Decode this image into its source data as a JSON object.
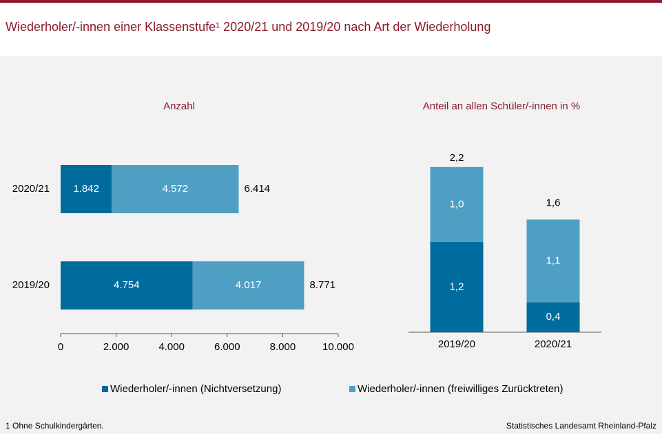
{
  "title": "Wiederholer/-innen einer Klassenstufe¹ 2020/21 und 2019/20 nach Art der Wiederholung",
  "footnote": "1 Ohne Schulkindergärten.",
  "source": "Statistisches Landesamt Rheinland-Pfalz",
  "chart_data": [
    {
      "type": "bar",
      "orientation": "horizontal",
      "subtitle": "Anzahl",
      "categories": [
        "2020/21",
        "2019/20"
      ],
      "series": [
        {
          "name": "Wiederholer/-innen (Nichtversetzung)",
          "color": "#006c9e",
          "values": [
            1842,
            4754
          ],
          "value_labels": [
            "1.842",
            "4.754"
          ]
        },
        {
          "name": "Wiederholer/-innen (freiwilliges Zurücktreten)",
          "color": "#4f9fc4",
          "values": [
            4572,
            4017
          ],
          "value_labels": [
            "4.572",
            "4.017"
          ]
        }
      ],
      "totals": [
        6414,
        8771
      ],
      "total_labels": [
        "6.414",
        "8.771"
      ],
      "xlim": [
        0,
        10000
      ],
      "xticks": [
        0,
        {
          "value": 2000,
          "label": "2.000"
        },
        {
          "value": 4000,
          "label": "4.000"
        },
        {
          "value": 6000,
          "label": "6.000"
        },
        {
          "value": 8000,
          "label": "8.000"
        },
        {
          "value": 10000,
          "label": "10.000"
        }
      ]
    },
    {
      "type": "bar",
      "orientation": "vertical",
      "subtitle": "Anteil an allen Schüler/-innen  in %",
      "categories": [
        "2019/20",
        "2020/21"
      ],
      "series": [
        {
          "color": "#006c9e",
          "values": [
            1.2,
            0.4
          ],
          "value_labels": [
            "1,2",
            "0,4"
          ]
        },
        {
          "color": "#4f9fc4",
          "values": [
            1.0,
            1.1
          ],
          "value_labels": [
            "1,0",
            "1,1"
          ]
        }
      ],
      "totals": [
        2.2,
        1.6
      ],
      "total_labels": [
        "2,2",
        "1,6"
      ],
      "ylim": [
        0,
        2.4
      ]
    }
  ]
}
